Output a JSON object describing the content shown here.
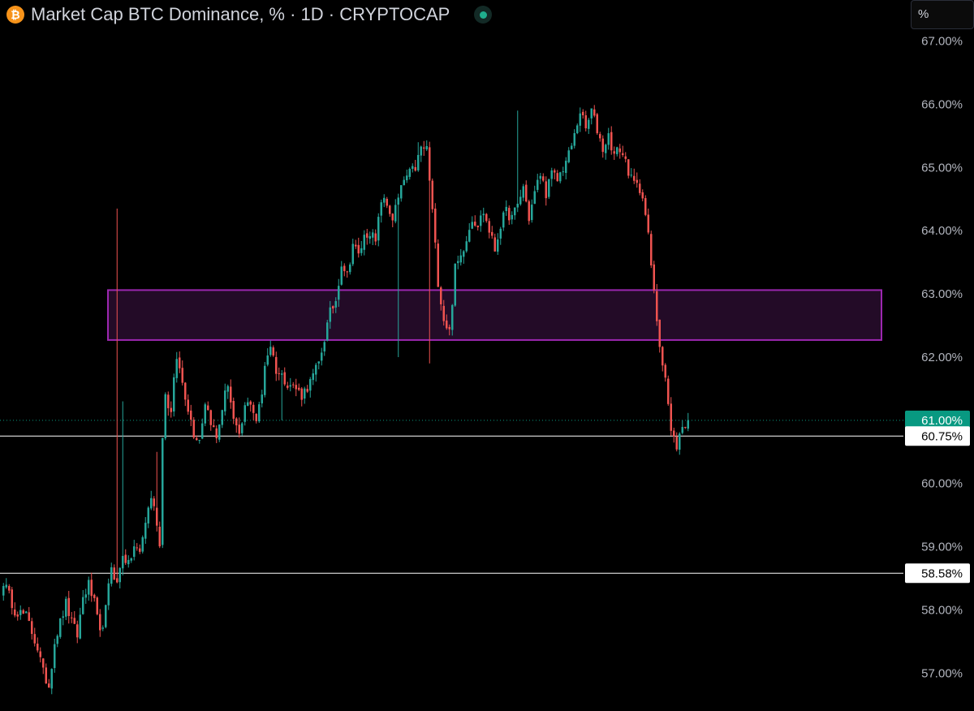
{
  "header": {
    "title": "Market Cap BTC Dominance, % · 1D · CRYPTOCAP",
    "logo_glyph": "₿",
    "logo_icon": "bitcoin-icon",
    "status_icon": "market-status-dot-icon"
  },
  "scale_toggle": {
    "label": "%"
  },
  "colors": {
    "background": "#000000",
    "up": "#26a69a",
    "down": "#ef5350",
    "zone_border": "#9c27b0",
    "zone_fill": "#230b27",
    "line": "#ffffff",
    "last_price_tag": "#089981"
  },
  "chart_data": {
    "type": "candlestick",
    "y_axis": {
      "min": 56.4,
      "max": 67.65,
      "unit": "%",
      "ticks": [
        "57.00%",
        "58.00%",
        "59.00%",
        "60.00%",
        "61.00%",
        "62.00%",
        "63.00%",
        "64.00%",
        "65.00%",
        "66.00%",
        "67.00%"
      ],
      "tick_values": [
        57,
        58,
        59,
        60,
        61,
        62,
        63,
        64,
        65,
        66,
        67
      ]
    },
    "grid": false,
    "last_price": {
      "value": 61.0,
      "label": "61.00%"
    },
    "horizontal_lines": [
      {
        "value": 60.75,
        "label": "60.75%"
      },
      {
        "value": 58.58,
        "label": "58.58%"
      }
    ],
    "zone": {
      "low": 62.27,
      "high": 63.06
    },
    "path": [
      [
        0,
        58.45
      ],
      [
        4,
        58.0
      ],
      [
        8,
        57.9
      ],
      [
        12,
        57.4
      ],
      [
        14,
        57.0
      ],
      [
        16,
        56.8
      ],
      [
        18,
        57.5
      ],
      [
        20,
        57.8
      ],
      [
        22,
        58.1
      ],
      [
        24,
        57.8
      ],
      [
        26,
        57.6
      ],
      [
        28,
        58.2
      ],
      [
        30,
        58.4
      ],
      [
        32,
        58.1
      ],
      [
        34,
        57.6
      ],
      [
        36,
        58.0
      ],
      [
        38,
        58.7
      ],
      [
        40,
        58.4
      ],
      [
        42,
        58.9
      ],
      [
        44,
        58.7
      ],
      [
        46,
        59.0
      ],
      [
        48,
        58.9
      ],
      [
        50,
        59.4
      ],
      [
        52,
        59.8
      ],
      [
        54,
        59.4
      ],
      [
        55,
        59.0
      ],
      [
        56,
        60.8
      ],
      [
        57,
        61.4
      ],
      [
        59,
        61.1
      ],
      [
        60,
        61.6
      ],
      [
        61,
        62.0
      ],
      [
        63,
        61.6
      ],
      [
        65,
        61.2
      ],
      [
        67,
        60.8
      ],
      [
        69,
        60.7
      ],
      [
        71,
        61.3
      ],
      [
        73,
        61.0
      ],
      [
        75,
        60.7
      ],
      [
        77,
        61.2
      ],
      [
        79,
        61.6
      ],
      [
        81,
        61.0
      ],
      [
        83,
        60.7
      ],
      [
        85,
        61.2
      ],
      [
        87,
        61.3
      ],
      [
        89,
        61.0
      ],
      [
        91,
        61.4
      ],
      [
        92,
        61.9
      ],
      [
        94,
        62.2
      ],
      [
        96,
        61.8
      ],
      [
        98,
        61.7
      ],
      [
        100,
        61.6
      ],
      [
        103,
        61.5
      ],
      [
        105,
        61.4
      ],
      [
        108,
        61.6
      ],
      [
        111,
        61.9
      ],
      [
        113,
        62.3
      ],
      [
        115,
        62.7
      ],
      [
        117,
        62.9
      ],
      [
        119,
        63.5
      ],
      [
        121,
        63.3
      ],
      [
        123,
        63.8
      ],
      [
        125,
        63.6
      ],
      [
        127,
        63.9
      ],
      [
        129,
        64.0
      ],
      [
        131,
        63.8
      ],
      [
        133,
        64.5
      ],
      [
        135,
        64.4
      ],
      [
        137,
        64.2
      ],
      [
        139,
        64.5
      ],
      [
        141,
        64.8
      ],
      [
        143,
        64.9
      ],
      [
        145,
        65.0
      ],
      [
        147,
        65.3
      ],
      [
        149,
        65.3
      ],
      [
        151,
        64.3
      ],
      [
        153,
        63.2
      ],
      [
        155,
        62.6
      ],
      [
        157,
        62.4
      ],
      [
        159,
        63.4
      ],
      [
        161,
        63.6
      ],
      [
        163,
        63.9
      ],
      [
        165,
        64.2
      ],
      [
        167,
        64.1
      ],
      [
        169,
        64.3
      ],
      [
        171,
        64.0
      ],
      [
        173,
        63.7
      ],
      [
        175,
        64.1
      ],
      [
        177,
        64.3
      ],
      [
        179,
        64.2
      ],
      [
        181,
        64.4
      ],
      [
        183,
        64.7
      ],
      [
        185,
        64.2
      ],
      [
        187,
        64.6
      ],
      [
        189,
        64.9
      ],
      [
        191,
        64.6
      ],
      [
        193,
        64.9
      ],
      [
        195,
        64.8
      ],
      [
        197,
        65.0
      ],
      [
        199,
        65.2
      ],
      [
        201,
        65.5
      ],
      [
        203,
        65.9
      ],
      [
        205,
        65.6
      ],
      [
        207,
        65.9
      ],
      [
        209,
        65.6
      ],
      [
        211,
        65.3
      ],
      [
        213,
        65.5
      ],
      [
        215,
        65.2
      ],
      [
        217,
        65.3
      ],
      [
        219,
        65.1
      ],
      [
        221,
        64.8
      ],
      [
        223,
        64.7
      ],
      [
        225,
        64.6
      ],
      [
        227,
        63.9
      ],
      [
        229,
        63.0
      ],
      [
        231,
        62.2
      ],
      [
        233,
        61.7
      ],
      [
        235,
        60.8
      ],
      [
        237,
        60.6
      ],
      [
        239,
        60.9
      ],
      [
        241,
        61.0
      ]
    ],
    "spikes": [
      [
        40,
        64.35
      ],
      [
        42,
        61.3
      ],
      [
        54,
        60.5
      ],
      [
        98,
        61.0
      ],
      [
        139,
        62.0
      ],
      [
        146,
        65.4
      ],
      [
        150,
        61.9
      ],
      [
        181,
        65.9
      ]
    ]
  }
}
